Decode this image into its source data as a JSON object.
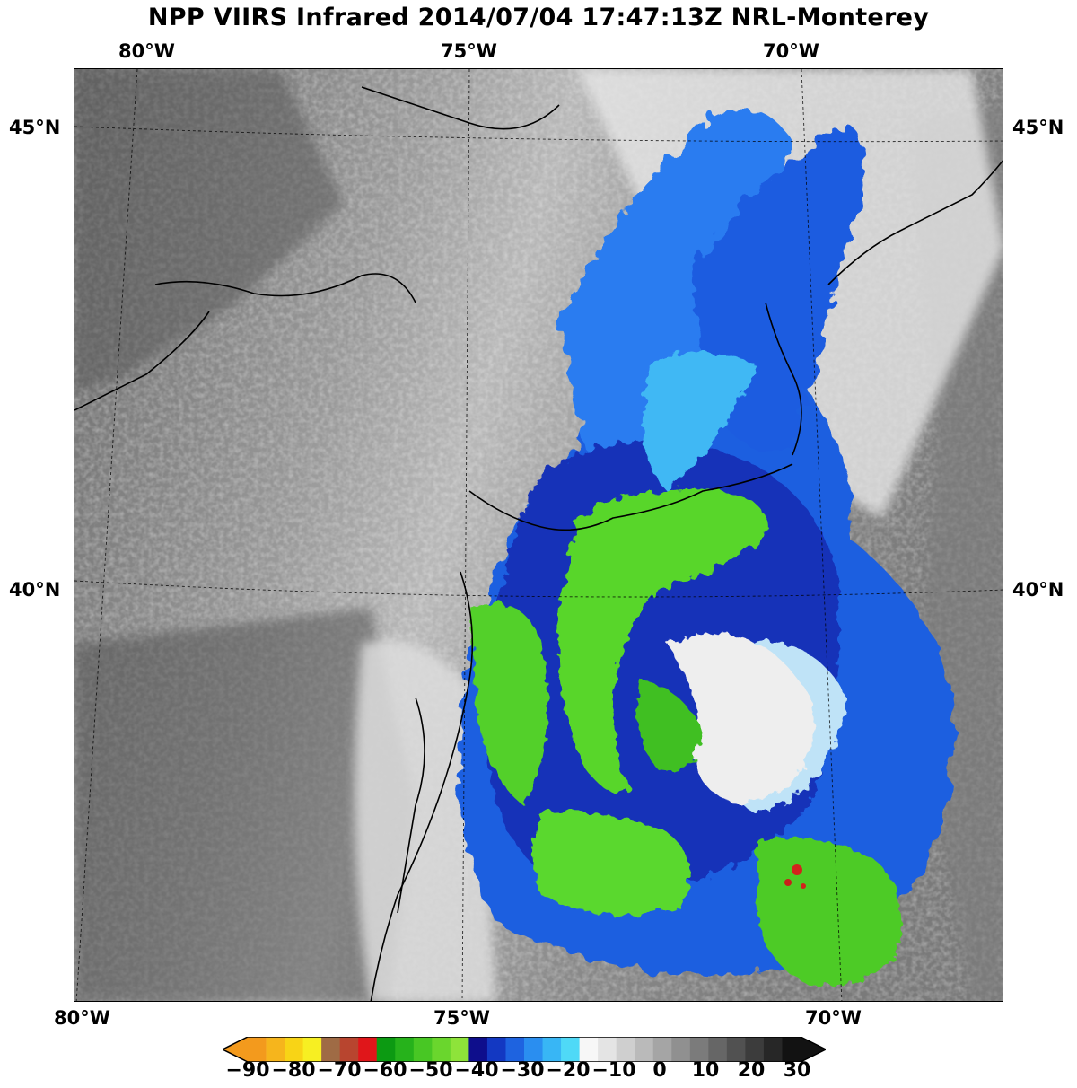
{
  "title": "NPP VIIRS Infrared 2014/07/04 17:47:13Z NRL-Monterey",
  "top_lon_labels": [
    "80°W",
    "75°W",
    "70°W"
  ],
  "bottom_lon_labels": [
    "80°W",
    "75°W",
    "70°W"
  ],
  "left_lat_labels": [
    "45°N",
    "40°N"
  ],
  "right_lat_labels": [
    "45°N",
    "40°N"
  ],
  "colorbar": {
    "ticks": [
      "−90",
      "−80",
      "−70",
      "−60",
      "−50",
      "−40",
      "−30",
      "−20",
      "−10",
      "0",
      "10",
      "20",
      "30"
    ],
    "colors": [
      "#f39a1d",
      "#f6b51c",
      "#f8d416",
      "#f7ef22",
      "#9f6b45",
      "#b8452f",
      "#e0161a",
      "#0c9a12",
      "#26b21b",
      "#48c724",
      "#6ad62d",
      "#8ee33a",
      "#0e0e8c",
      "#1338c2",
      "#1e63e0",
      "#2a8ef0",
      "#38b6f5",
      "#4fd9f7",
      "#f7f7f7",
      "#e4e4e4",
      "#cfcfcf",
      "#bababa",
      "#a5a5a5",
      "#909090",
      "#7b7b7b",
      "#666666",
      "#515151",
      "#3c3c3c",
      "#272727",
      "#121212"
    ]
  }
}
